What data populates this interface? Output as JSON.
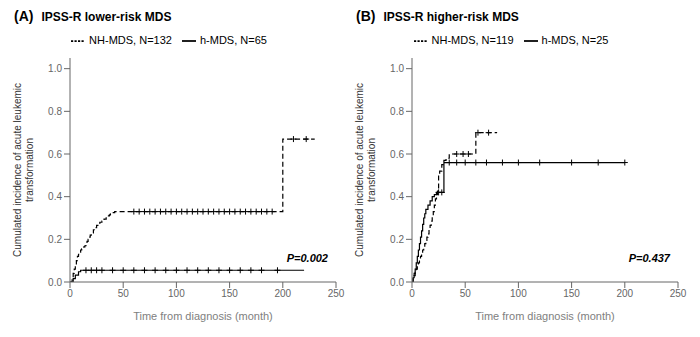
{
  "chart_data": [
    {
      "type": "step",
      "title": "IPSS-R lower-risk MDS",
      "annotations": [
        "(A)",
        "P=0.002"
      ],
      "xlabel": "Time from diagnosis (month)",
      "ylabel": "Cumulated incidence of acute leukemic\ntransformation",
      "xlim": [
        0,
        250
      ],
      "xticks": [
        0,
        50,
        100,
        150,
        200,
        250
      ],
      "ylim": [
        0.0,
        1.05
      ],
      "yticks": [
        {
          "value": 0.0,
          "label": "0.0"
        },
        0.2,
        0.4,
        0.6,
        0.8,
        {
          "value": 1.0,
          "label": "1.0"
        }
      ],
      "grid": false,
      "legend": "top",
      "series": [
        {
          "name": "NH-MDS, N=132",
          "color": "#000000",
          "line_style": "dashed",
          "marker": "plus",
          "x": [
            0,
            2,
            3,
            4,
            5,
            6,
            7,
            8,
            9,
            10,
            11,
            12,
            13,
            14,
            15,
            16,
            17,
            18,
            19,
            20,
            22,
            23,
            25,
            27,
            28,
            30,
            32,
            34,
            35,
            37,
            38,
            40,
            42,
            45,
            48,
            50,
            55,
            60,
            65,
            70,
            80,
            90,
            100,
            120,
            140,
            160,
            180,
            195,
            200,
            220,
            230
          ],
          "values": [
            0,
            0.02,
            0.04,
            0.06,
            0.08,
            0.1,
            0.12,
            0.13,
            0.14,
            0.15,
            0.155,
            0.16,
            0.165,
            0.17,
            0.18,
            0.19,
            0.2,
            0.21,
            0.22,
            0.23,
            0.245,
            0.255,
            0.265,
            0.275,
            0.28,
            0.285,
            0.295,
            0.305,
            0.31,
            0.315,
            0.32,
            0.325,
            0.33,
            0.33,
            0.33,
            0.33,
            0.33,
            0.33,
            0.33,
            0.33,
            0.33,
            0.33,
            0.33,
            0.33,
            0.33,
            0.33,
            0.33,
            0.33,
            0.67,
            0.67,
            0.67
          ],
          "censors": [
            [
              60,
              0.33
            ],
            [
              65,
              0.33
            ],
            [
              70,
              0.33
            ],
            [
              75,
              0.33
            ],
            [
              80,
              0.33
            ],
            [
              85,
              0.33
            ],
            [
              90,
              0.33
            ],
            [
              95,
              0.33
            ],
            [
              100,
              0.33
            ],
            [
              105,
              0.33
            ],
            [
              110,
              0.33
            ],
            [
              115,
              0.33
            ],
            [
              120,
              0.33
            ],
            [
              125,
              0.33
            ],
            [
              130,
              0.33
            ],
            [
              135,
              0.33
            ],
            [
              140,
              0.33
            ],
            [
              145,
              0.33
            ],
            [
              150,
              0.33
            ],
            [
              155,
              0.33
            ],
            [
              160,
              0.33
            ],
            [
              165,
              0.33
            ],
            [
              170,
              0.33
            ],
            [
              175,
              0.33
            ],
            [
              180,
              0.33
            ],
            [
              185,
              0.33
            ],
            [
              190,
              0.33
            ],
            [
              210,
              0.67
            ],
            [
              222,
              0.67
            ]
          ]
        },
        {
          "name": "h-MDS, N=65",
          "color": "#000000",
          "line_style": "solid",
          "marker": "plus",
          "x": [
            0,
            3,
            5,
            8,
            10,
            12,
            15,
            20,
            30,
            200,
            220
          ],
          "values": [
            0,
            0.016,
            0.032,
            0.048,
            0.055,
            0.055,
            0.055,
            0.055,
            0.055,
            0.055,
            0.055
          ],
          "censors": [
            [
              15,
              0.055
            ],
            [
              20,
              0.055
            ],
            [
              25,
              0.055
            ],
            [
              30,
              0.055
            ],
            [
              40,
              0.055
            ],
            [
              50,
              0.055
            ],
            [
              60,
              0.055
            ],
            [
              70,
              0.055
            ],
            [
              80,
              0.055
            ],
            [
              90,
              0.055
            ],
            [
              100,
              0.055
            ],
            [
              110,
              0.055
            ],
            [
              120,
              0.055
            ],
            [
              130,
              0.055
            ],
            [
              140,
              0.055
            ],
            [
              150,
              0.055
            ],
            [
              160,
              0.055
            ],
            [
              170,
              0.055
            ],
            [
              180,
              0.055
            ],
            [
              195,
              0.055
            ]
          ]
        }
      ]
    },
    {
      "type": "step",
      "title": "IPSS-R higher-risk MDS",
      "annotations": [
        "(B)",
        "P=0.437"
      ],
      "xlabel": "Time from diagnosis (month)",
      "ylabel": "Cumulated incidence of acute leukemic\ntransformation",
      "xlim": [
        0,
        250
      ],
      "xticks": [
        0,
        50,
        100,
        150,
        200,
        250
      ],
      "ylim": [
        0.0,
        1.05
      ],
      "yticks": [
        {
          "value": 0.0,
          "label": "0.0"
        },
        0.2,
        0.4,
        0.6,
        0.8,
        {
          "value": 1.0,
          "label": "1.0"
        }
      ],
      "grid": false,
      "legend": "top",
      "series": [
        {
          "name": "NH-MDS, N=119",
          "color": "#000000",
          "line_style": "dashed",
          "marker": "plus",
          "x": [
            0,
            1,
            2,
            3,
            4,
            5,
            6,
            7,
            8,
            9,
            10,
            11,
            12,
            13,
            14,
            15,
            16,
            17,
            18,
            19,
            20,
            21,
            22,
            23,
            24,
            25,
            26,
            28,
            30,
            32,
            35,
            38,
            40,
            45,
            50,
            55,
            60,
            70,
            80
          ],
          "values": [
            0,
            0.015,
            0.03,
            0.045,
            0.06,
            0.075,
            0.09,
            0.105,
            0.12,
            0.135,
            0.15,
            0.165,
            0.18,
            0.195,
            0.21,
            0.225,
            0.245,
            0.265,
            0.285,
            0.305,
            0.33,
            0.36,
            0.39,
            0.41,
            0.43,
            0.5,
            0.52,
            0.55,
            0.57,
            0.58,
            0.6,
            0.6,
            0.6,
            0.6,
            0.6,
            0.6,
            0.7,
            0.7,
            0.7
          ],
          "censors": [
            [
              42,
              0.6
            ],
            [
              48,
              0.6
            ],
            [
              53,
              0.6
            ],
            [
              62,
              0.7
            ],
            [
              72,
              0.7
            ]
          ]
        },
        {
          "name": "h-MDS, N=25",
          "color": "#000000",
          "line_style": "solid",
          "marker": "plus",
          "x": [
            0,
            1,
            2,
            3,
            4,
            5,
            6,
            7,
            8,
            9,
            10,
            11,
            12,
            13,
            15,
            17,
            19,
            21,
            23,
            25,
            27,
            30,
            33,
            36,
            40,
            45,
            50,
            60,
            80,
            100,
            130,
            200
          ],
          "values": [
            0,
            0.02,
            0.04,
            0.06,
            0.09,
            0.12,
            0.15,
            0.18,
            0.21,
            0.24,
            0.27,
            0.3,
            0.32,
            0.34,
            0.36,
            0.38,
            0.4,
            0.41,
            0.42,
            0.42,
            0.42,
            0.56,
            0.56,
            0.56,
            0.56,
            0.56,
            0.56,
            0.56,
            0.56,
            0.56,
            0.56,
            0.56
          ],
          "censors": [
            [
              25,
              0.42
            ],
            [
              28,
              0.42
            ],
            [
              35,
              0.56
            ],
            [
              42,
              0.56
            ],
            [
              50,
              0.56
            ],
            [
              60,
              0.56
            ],
            [
              70,
              0.56
            ],
            [
              85,
              0.56
            ],
            [
              100,
              0.56
            ],
            [
              120,
              0.56
            ],
            [
              150,
              0.56
            ],
            [
              175,
              0.56
            ],
            [
              200,
              0.56
            ]
          ]
        }
      ]
    }
  ]
}
